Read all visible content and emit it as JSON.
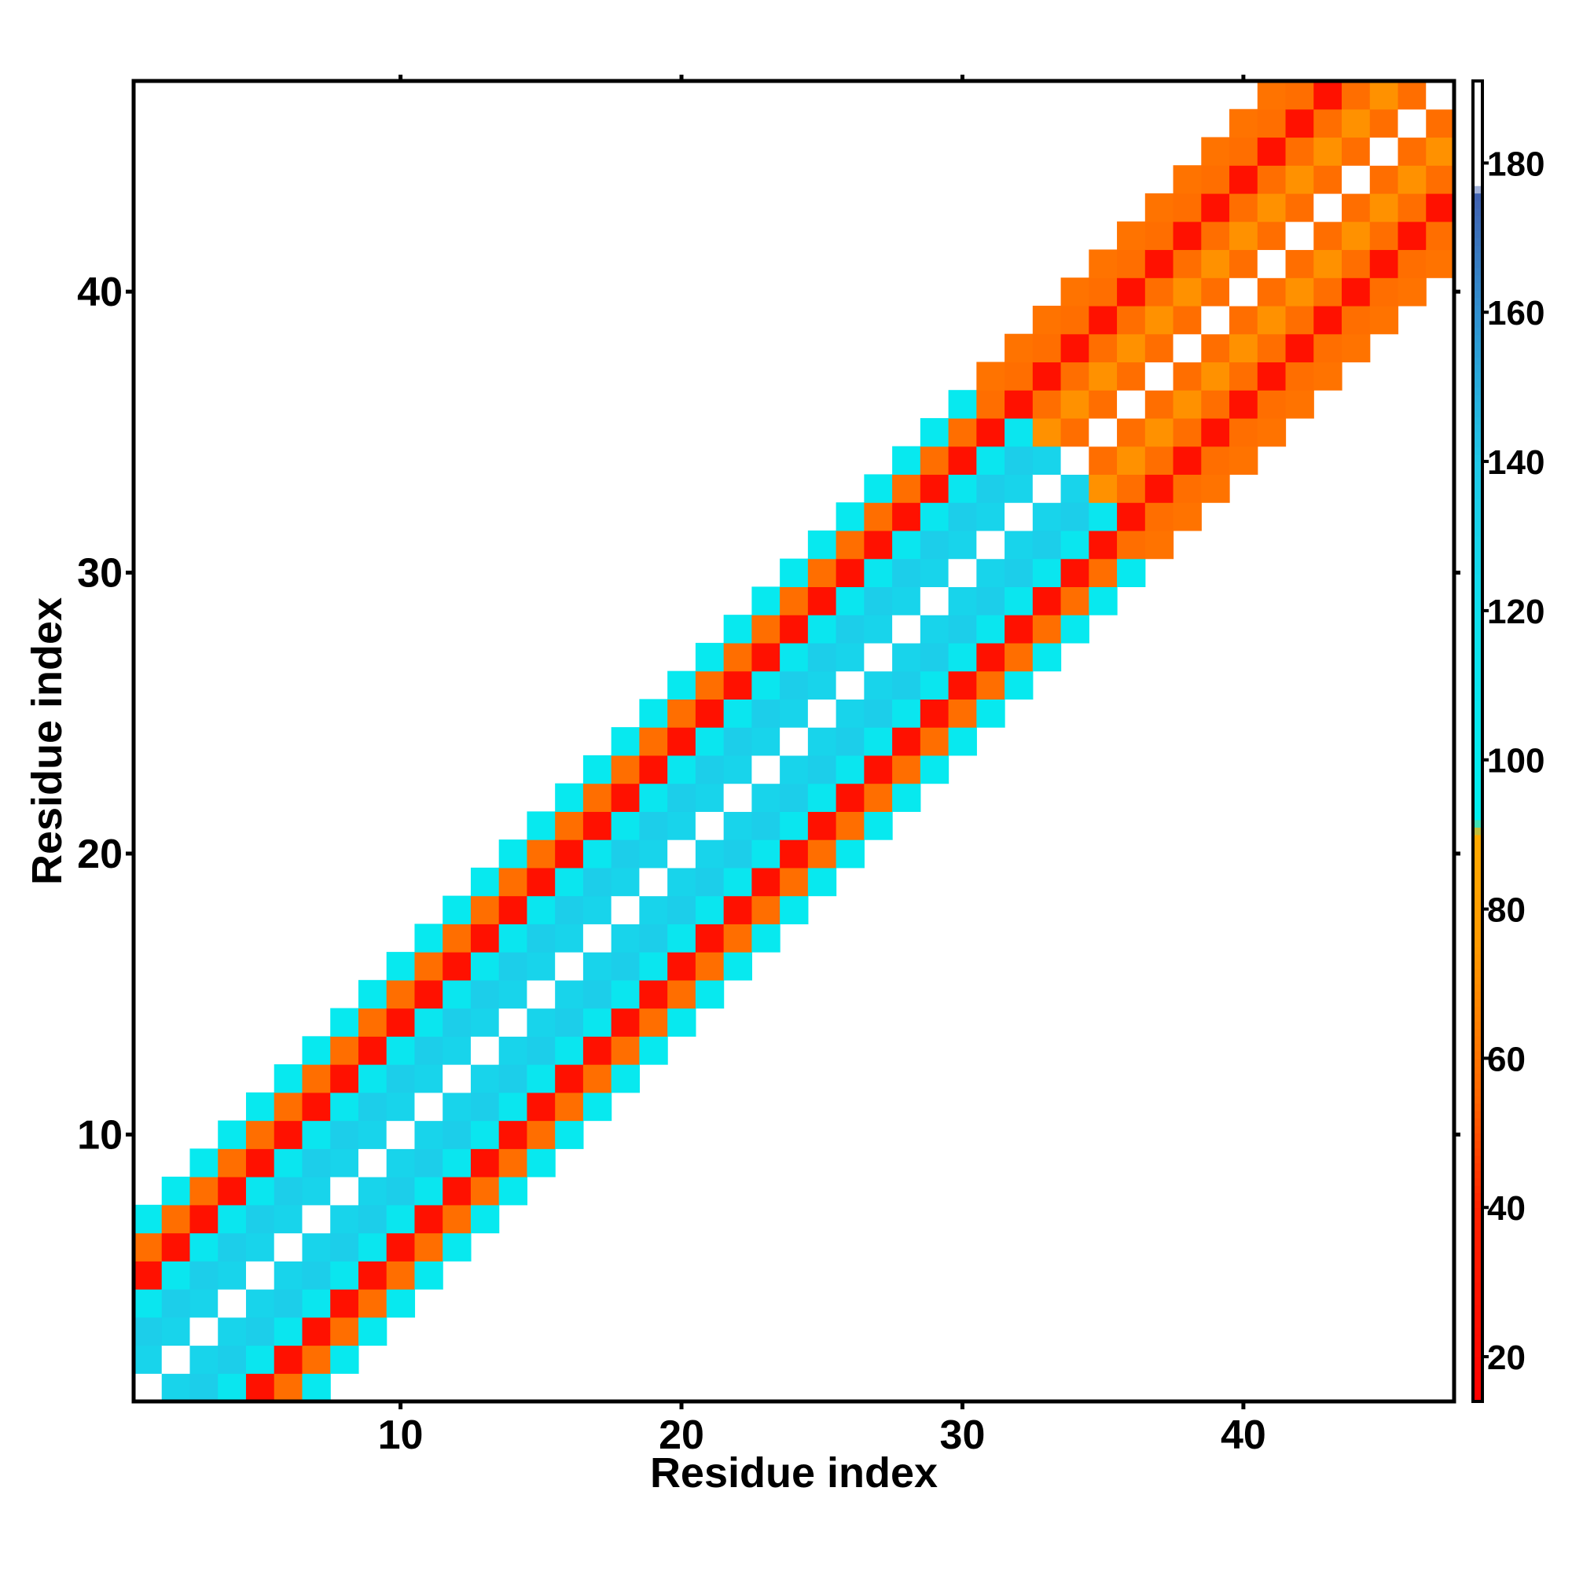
{
  "chart_data": {
    "type": "heatmap",
    "title": "",
    "xlabel": "Residue index",
    "ylabel": "Residue index",
    "xlim": [
      0.5,
      47.5
    ],
    "ylim": [
      0.5,
      47.5
    ],
    "x_ticks": [
      10,
      20,
      30,
      40
    ],
    "y_ticks": [
      10,
      20,
      30,
      40
    ],
    "grid": false,
    "colorbar": {
      "range": [
        14,
        191
      ],
      "ticks": [
        20,
        40,
        60,
        80,
        100,
        120,
        140,
        160,
        180
      ],
      "stops": [
        {
          "value": 14,
          "color": "#ff0000"
        },
        {
          "value": 40,
          "color": "#ff2200"
        },
        {
          "value": 55,
          "color": "#ff6600"
        },
        {
          "value": 75,
          "color": "#ff9900"
        },
        {
          "value": 90,
          "color": "#ffaa00"
        },
        {
          "value": 92,
          "color": "#00f0f0"
        },
        {
          "value": 120,
          "color": "#10e0ee"
        },
        {
          "value": 140,
          "color": "#20c8e8"
        },
        {
          "value": 160,
          "color": "#3090d0"
        },
        {
          "value": 176,
          "color": "#4060b0"
        },
        {
          "value": 177,
          "color": "#ffffff"
        },
        {
          "value": 191,
          "color": "#ffffff"
        }
      ]
    },
    "diagonal_pattern": {
      "description_offsets": [
        0,
        1,
        2,
        3,
        4,
        5,
        6
      ],
      "helix_region_values": [
        180,
        130,
        135,
        110,
        27,
        58,
        105
      ],
      "sheet_region_values": [
        180,
        58,
        72,
        58,
        27,
        58,
        60
      ],
      "helix_residues": [
        1,
        35
      ],
      "sheet_residues": [
        34,
        47
      ]
    }
  }
}
